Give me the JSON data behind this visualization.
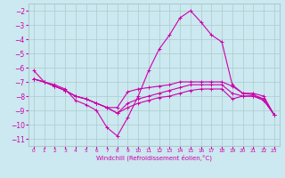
{
  "xlabel": "Windchill (Refroidissement éolien,°C)",
  "background_color": "#cce8f0",
  "grid_color": "#aacccc",
  "line_color": "#cc00aa",
  "x_ticks": [
    0,
    1,
    2,
    3,
    4,
    5,
    6,
    7,
    8,
    9,
    10,
    11,
    12,
    13,
    14,
    15,
    16,
    17,
    18,
    19,
    20,
    21,
    22,
    23
  ],
  "y_ticks": [
    -2,
    -3,
    -4,
    -5,
    -6,
    -7,
    -8,
    -9,
    -10,
    -11
  ],
  "ylim": [
    -11.5,
    -1.5
  ],
  "xlim": [
    -0.5,
    23.5
  ],
  "curves": [
    [
      -6.2,
      -7.0,
      -7.2,
      -7.5,
      -8.3,
      -8.6,
      -9.0,
      -10.2,
      -10.8,
      -9.5,
      -8.0,
      -6.2,
      -4.7,
      -3.7,
      -2.5,
      -2.0,
      -2.8,
      -3.7,
      -4.2,
      -7.2,
      -7.8,
      -7.9,
      -8.2,
      -9.3
    ],
    [
      -6.8,
      -7.0,
      -7.3,
      -7.6,
      -8.0,
      -8.2,
      -8.5,
      -8.8,
      -8.8,
      -7.7,
      -7.5,
      -7.4,
      -7.3,
      -7.2,
      -7.0,
      -7.0,
      -7.0,
      -7.0,
      -7.0,
      -7.3,
      -7.8,
      -7.8,
      -8.0,
      -9.3
    ],
    [
      -6.8,
      -7.0,
      -7.3,
      -7.6,
      -8.0,
      -8.2,
      -8.5,
      -8.8,
      -9.2,
      -8.5,
      -8.2,
      -8.0,
      -7.8,
      -7.6,
      -7.4,
      -7.2,
      -7.2,
      -7.2,
      -7.2,
      -7.8,
      -8.0,
      -8.0,
      -8.2,
      -9.3
    ],
    [
      -6.8,
      -7.0,
      -7.3,
      -7.6,
      -8.0,
      -8.2,
      -8.5,
      -8.8,
      -9.2,
      -8.8,
      -8.5,
      -8.3,
      -8.1,
      -8.0,
      -7.8,
      -7.6,
      -7.5,
      -7.5,
      -7.5,
      -8.2,
      -8.0,
      -8.0,
      -8.3,
      -9.3
    ]
  ]
}
